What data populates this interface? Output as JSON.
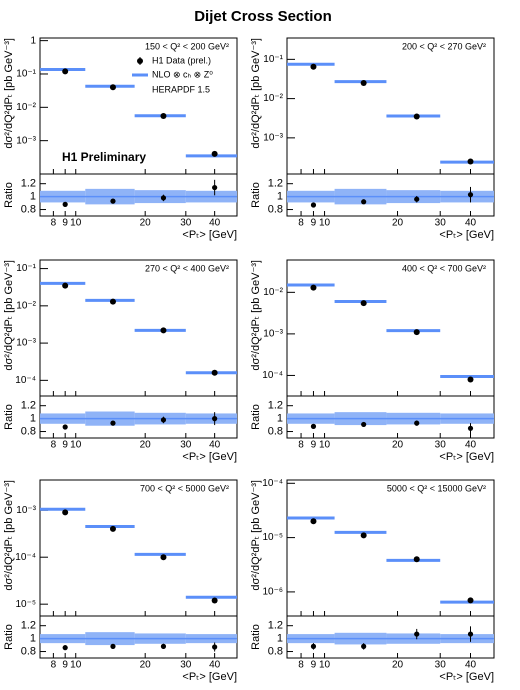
{
  "title": "Dijet Cross Section",
  "xlabel": "<Pₜ> [GeV]",
  "ylabel": "dσ²/dQ²dPₜ [pb GeV⁻³]",
  "ratio_label": "Ratio",
  "legend": [
    "H1 Data (prel.)",
    "NLO ⊗ cₕ ⊗ Z⁰"
  ],
  "pdf_label": "HERAPDF 1.5",
  "annotation": "H1 Preliminary",
  "data_color": "#000000",
  "nlo_color": "#5b8ff9",
  "band_color": "#8fb3f7",
  "chart_data": [
    {
      "type": "scatter",
      "label": "150 < Q² < 200 GeV²",
      "log": true,
      "x": [
        9,
        14.5,
        24,
        40
      ],
      "values": [
        0.12,
        0.04,
        0.0055,
        0.0004
      ],
      "nlo": [
        0.136,
        0.043,
        0.0056,
        0.00035
      ],
      "xbins": [
        7,
        11,
        18,
        30,
        50
      ],
      "xlim": [
        7,
        50
      ],
      "xticks": [
        8,
        9,
        10,
        20,
        30,
        40
      ],
      "ylim": [
        0.0001,
        1.2
      ],
      "yticks": [
        {
          "value": 0.001,
          "label": "10⁻³"
        },
        {
          "value": 0.01,
          "label": "10⁻²"
        },
        {
          "value": 0.1,
          "label": "10⁻¹"
        },
        1
      ],
      "ratio": {
        "values": [
          0.88,
          0.93,
          0.98,
          1.14
        ],
        "errors": [
          0.02,
          0.03,
          0.05,
          0.12
        ],
        "band_errors": [
          0.09,
          0.12,
          0.1,
          0.09
        ],
        "ylim": [
          0.7,
          1.35
        ],
        "yticks": [
          0.8,
          1,
          1.2
        ]
      }
    },
    {
      "type": "scatter",
      "label": "200 < Q² < 270 GeV²",
      "log": true,
      "x": [
        9,
        14.5,
        24,
        40
      ],
      "values": [
        0.065,
        0.025,
        0.0035,
        0.00025
      ],
      "nlo": [
        0.075,
        0.027,
        0.0036,
        0.00024
      ],
      "xbins": [
        7,
        11,
        18,
        30,
        50
      ],
      "xlim": [
        7,
        50
      ],
      "xticks": [
        8,
        9,
        10,
        20,
        30,
        40
      ],
      "ylim": [
        0.00012,
        0.35
      ],
      "yticks": [
        {
          "value": 0.001,
          "label": "10⁻³"
        },
        {
          "value": 0.01,
          "label": "10⁻²"
        },
        {
          "value": 0.1,
          "label": "10⁻¹"
        }
      ],
      "ratio": {
        "values": [
          0.87,
          0.92,
          0.96,
          1.03
        ],
        "errors": [
          0.02,
          0.03,
          0.05,
          0.12
        ],
        "band_errors": [
          0.09,
          0.12,
          0.1,
          0.09
        ],
        "ylim": [
          0.7,
          1.35
        ],
        "yticks": [
          0.8,
          1,
          1.2
        ]
      }
    },
    {
      "type": "scatter",
      "label": "270 < Q² < 400 GeV²",
      "log": true,
      "x": [
        9,
        14.5,
        24,
        40
      ],
      "values": [
        0.035,
        0.013,
        0.0022,
        0.00016
      ],
      "nlo": [
        0.04,
        0.014,
        0.0022,
        0.00016
      ],
      "xbins": [
        7,
        11,
        18,
        30,
        50
      ],
      "xlim": [
        7,
        50
      ],
      "xticks": [
        8,
        9,
        10,
        20,
        30,
        40
      ],
      "ylim": [
        3.8e-05,
        0.17
      ],
      "yticks": [
        {
          "value": 0.0001,
          "label": "10⁻⁴"
        },
        {
          "value": 0.001,
          "label": "10⁻³"
        },
        {
          "value": 0.01,
          "label": "10⁻²"
        },
        {
          "value": 0.1,
          "label": "10⁻¹"
        }
      ],
      "ratio": {
        "values": [
          0.87,
          0.93,
          0.98,
          1.0
        ],
        "errors": [
          0.02,
          0.03,
          0.05,
          0.1
        ],
        "band_errors": [
          0.08,
          0.11,
          0.09,
          0.08
        ],
        "ylim": [
          0.7,
          1.35
        ],
        "yticks": [
          0.8,
          1,
          1.2
        ]
      }
    },
    {
      "type": "scatter",
      "label": "400 < Q² < 700 GeV²",
      "log": true,
      "x": [
        9,
        14.5,
        24,
        40
      ],
      "values": [
        0.013,
        0.0055,
        0.0011,
        8e-05
      ],
      "nlo": [
        0.015,
        0.006,
        0.0012,
        9.4e-05
      ],
      "xbins": [
        7,
        11,
        18,
        30,
        50
      ],
      "xlim": [
        7,
        50
      ],
      "xticks": [
        8,
        9,
        10,
        20,
        30,
        40
      ],
      "ylim": [
        3.2e-05,
        0.06
      ],
      "yticks": [
        {
          "value": 0.0001,
          "label": "10⁻⁴"
        },
        {
          "value": 0.001,
          "label": "10⁻³"
        },
        {
          "value": 0.01,
          "label": "10⁻²"
        }
      ],
      "ratio": {
        "values": [
          0.88,
          0.91,
          0.93,
          0.85
        ],
        "errors": [
          0.02,
          0.03,
          0.04,
          0.08
        ],
        "band_errors": [
          0.08,
          0.1,
          0.09,
          0.08
        ],
        "ylim": [
          0.7,
          1.35
        ],
        "yticks": [
          0.8,
          1,
          1.2
        ]
      }
    },
    {
      "type": "scatter",
      "label": "700 < Q² < 5000 GeV²",
      "log": true,
      "x": [
        9,
        14.5,
        24,
        40
      ],
      "values": [
        0.0009,
        0.0004,
        0.0001,
        1.2e-05
      ],
      "nlo": [
        0.00105,
        0.00045,
        0.000115,
        1.4e-05
      ],
      "xbins": [
        7,
        11,
        18,
        30,
        50
      ],
      "xlim": [
        7,
        50
      ],
      "xticks": [
        8,
        9,
        10,
        20,
        30,
        40
      ],
      "ylim": [
        5.6e-06,
        0.0044
      ],
      "yticks": [
        {
          "value": 1e-05,
          "label": "10⁻⁵"
        },
        {
          "value": 0.0001,
          "label": "10⁻⁴"
        },
        {
          "value": 0.001,
          "label": "10⁻³"
        }
      ],
      "ratio": {
        "values": [
          0.86,
          0.88,
          0.88,
          0.87
        ],
        "errors": [
          0.02,
          0.03,
          0.04,
          0.07
        ],
        "band_errors": [
          0.07,
          0.1,
          0.08,
          0.07
        ],
        "ylim": [
          0.7,
          1.35
        ],
        "yticks": [
          0.8,
          1,
          1.2
        ]
      }
    },
    {
      "type": "scatter",
      "label": "5000 < Q² < 15000 GeV²",
      "log": true,
      "x": [
        9,
        14.5,
        24,
        40
      ],
      "values": [
        2e-05,
        1.1e-05,
        4e-06,
        7e-07
      ],
      "nlo": [
        2.3e-05,
        1.25e-05,
        3.8e-06,
        6.5e-07
      ],
      "xbins": [
        7,
        11,
        18,
        30,
        50
      ],
      "xlim": [
        7,
        50
      ],
      "xticks": [
        8,
        9,
        10,
        20,
        30,
        40
      ],
      "ylim": [
        3.6e-07,
        0.000115
      ],
      "yticks": [
        {
          "value": 1e-06,
          "label": "10⁻⁶"
        },
        {
          "value": 1e-05,
          "label": "10⁻⁵"
        },
        {
          "value": 0.0001,
          "label": "10⁻⁴"
        }
      ],
      "ratio": {
        "values": [
          0.88,
          0.88,
          1.07,
          1.07
        ],
        "errors": [
          0.05,
          0.05,
          0.08,
          0.12
        ],
        "band_errors": [
          0.07,
          0.09,
          0.08,
          0.07
        ],
        "ylim": [
          0.7,
          1.35
        ],
        "yticks": [
          0.8,
          1,
          1.2
        ]
      }
    }
  ]
}
